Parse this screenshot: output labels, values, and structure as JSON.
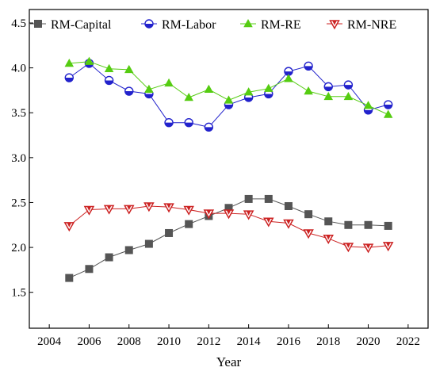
{
  "chart_data": {
    "type": "line",
    "title": "",
    "xlabel": "Year",
    "ylabel": "",
    "xlim": [
      2003,
      2023
    ],
    "ylim": [
      1.1,
      4.65
    ],
    "x_ticks": [
      2004,
      2006,
      2008,
      2010,
      2012,
      2014,
      2016,
      2018,
      2020,
      2022
    ],
    "y_ticks": [
      1.5,
      2.0,
      2.5,
      3.0,
      3.5,
      4.0,
      4.5
    ],
    "x_tick_labels": [
      "2004",
      "2006",
      "2008",
      "2010",
      "2012",
      "2014",
      "2016",
      "2018",
      "2020",
      "2022"
    ],
    "y_tick_labels": [
      "1.5",
      "2.0",
      "2.5",
      "3.0",
      "3.5",
      "4.0",
      "4.5"
    ],
    "grid": false,
    "legend_position": "top",
    "x": [
      2005,
      2006,
      2007,
      2008,
      2009,
      2010,
      2011,
      2012,
      2013,
      2014,
      2015,
      2016,
      2017,
      2018,
      2019,
      2020,
      2021
    ],
    "series": [
      {
        "name": "RM-Capital",
        "color": "#555555",
        "marker": "square",
        "values": [
          1.66,
          1.76,
          1.89,
          1.97,
          2.04,
          2.16,
          2.26,
          2.35,
          2.44,
          2.54,
          2.54,
          2.46,
          2.37,
          2.29,
          2.25,
          2.25,
          2.24
        ]
      },
      {
        "name": "RM-Labor",
        "color": "#2222cc",
        "marker": "circle",
        "values": [
          3.89,
          4.05,
          3.86,
          3.74,
          3.71,
          3.39,
          3.39,
          3.34,
          3.59,
          3.67,
          3.71,
          3.96,
          4.02,
          3.79,
          3.81,
          3.53,
          3.59
        ]
      },
      {
        "name": "RM-RE",
        "color": "#55cc11",
        "marker": "triangle-up",
        "values": [
          4.05,
          4.07,
          3.99,
          3.98,
          3.76,
          3.83,
          3.67,
          3.76,
          3.64,
          3.73,
          3.77,
          3.88,
          3.74,
          3.68,
          3.68,
          3.58,
          3.48
        ]
      },
      {
        "name": "RM-NRE",
        "color": "#cc2222",
        "marker": "triangle-down",
        "values": [
          2.24,
          2.42,
          2.43,
          2.43,
          2.46,
          2.45,
          2.42,
          2.38,
          2.38,
          2.37,
          2.29,
          2.27,
          2.16,
          2.1,
          2.01,
          2.0,
          2.02
        ]
      }
    ]
  }
}
